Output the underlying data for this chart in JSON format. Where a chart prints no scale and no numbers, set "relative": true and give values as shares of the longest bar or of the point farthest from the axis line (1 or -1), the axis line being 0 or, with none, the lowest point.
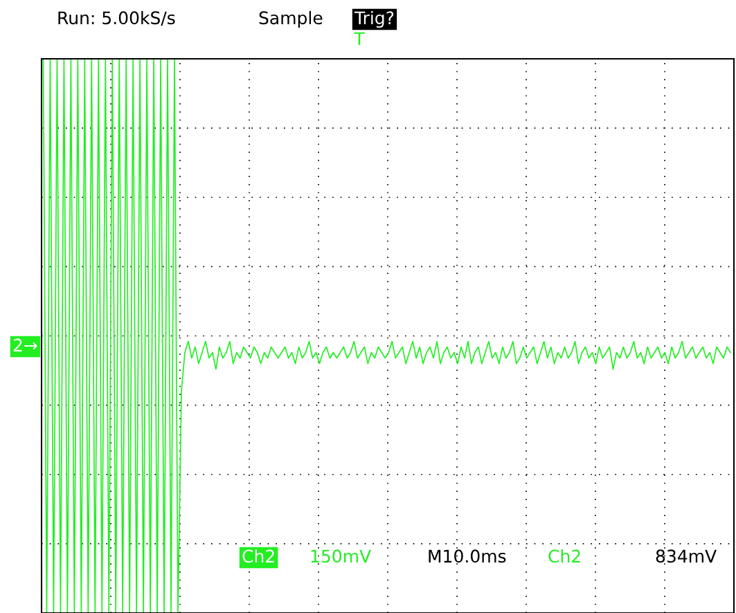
{
  "chart_data": {
    "type": "line",
    "relative": true,
    "grid": true,
    "tick_labels": false,
    "legend": false,
    "marker": "none",
    "line_style": "solid",
    "annotations": [
      "Run: 5.00kS/s",
      "Sample",
      "Trig?",
      "T",
      "2→",
      "Ch2",
      "150mV",
      "M10.0ms",
      "Ch2",
      "834mV"
    ],
    "categories": [
      null,
      null,
      null,
      null,
      null,
      null,
      null,
      null,
      null,
      null,
      null,
      null,
      null,
      null,
      null,
      null,
      null,
      null,
      null,
      null,
      null,
      null,
      null,
      null,
      null,
      null,
      null,
      null,
      null,
      null,
      null,
      null,
      null,
      null,
      null,
      null,
      null,
      null,
      null,
      null,
      null,
      null,
      null,
      null,
      null,
      null,
      null,
      null,
      null,
      null,
      null,
      null,
      null,
      null,
      null,
      null,
      null,
      null,
      null,
      null,
      null,
      null,
      null,
      null,
      null,
      null,
      null,
      null,
      null,
      null,
      null,
      null,
      null,
      null,
      null,
      null,
      null,
      null,
      null,
      null,
      null,
      null,
      null,
      null,
      null,
      null,
      null,
      null,
      null,
      null,
      null,
      null,
      null,
      null,
      null,
      null,
      null,
      null,
      null,
      null,
      null,
      null,
      null,
      null,
      null,
      null,
      null,
      null,
      null,
      null,
      null,
      null,
      null,
      null,
      null,
      null,
      null,
      null,
      null,
      null,
      null,
      null,
      null,
      null,
      null,
      null,
      null,
      null,
      null,
      null,
      null,
      null,
      null,
      null,
      null,
      null,
      null,
      null,
      null,
      null,
      null,
      null,
      null,
      null,
      null,
      null,
      null,
      null,
      null,
      null,
      null,
      null,
      null,
      null,
      null,
      null,
      null,
      null,
      null,
      null,
      null,
      null,
      null,
      null,
      null,
      null,
      null,
      null,
      null,
      null,
      null,
      null,
      null,
      null,
      null,
      null,
      null,
      null,
      null,
      null,
      null,
      null,
      null,
      null,
      null,
      null,
      null,
      null,
      null,
      null,
      null,
      null,
      null,
      null,
      null,
      null,
      null,
      null,
      null,
      null
    ],
    "series": [
      {
        "color": "#22ee22",
        "values": [
          1,
          0,
          1,
          0,
          1,
          0,
          1,
          0,
          1,
          0,
          1,
          0,
          1,
          0,
          1,
          0,
          1,
          0,
          1,
          0,
          1,
          0,
          1,
          0,
          1,
          0,
          1,
          0,
          1,
          0,
          1,
          0,
          1,
          0,
          1,
          0,
          1,
          0,
          1,
          0,
          0.4,
          0.47,
          0.49,
          0.46,
          0.48,
          0.45,
          0.47,
          0.49,
          0.46,
          0.47,
          0.44,
          0.48,
          0.46,
          0.47,
          0.49,
          0.45,
          0.47,
          0.46,
          0.48,
          0.47,
          0.46,
          0.48,
          0.47,
          0.45,
          0.47,
          0.46,
          0.48,
          0.47,
          0.46,
          0.47,
          0.48,
          0.46,
          0.47,
          0.45,
          0.48,
          0.46,
          0.47,
          0.49,
          0.46,
          0.47,
          0.45,
          0.47,
          0.48,
          0.46,
          0.47,
          0.46,
          0.47,
          0.48,
          0.46,
          0.47,
          0.49,
          0.46,
          0.47,
          0.48,
          0.45,
          0.47,
          0.46,
          0.48,
          0.47,
          0.46,
          0.47,
          0.49,
          0.46,
          0.47,
          0.48,
          0.45,
          0.47,
          0.49,
          0.46,
          0.48,
          0.45,
          0.47,
          0.48,
          0.46,
          0.49,
          0.45,
          0.47,
          0.48,
          0.46,
          0.47,
          0.45,
          0.48,
          0.46,
          0.49,
          0.45,
          0.47,
          0.48,
          0.45,
          0.47,
          0.49,
          0.46,
          0.47,
          0.45,
          0.48,
          0.46,
          0.47,
          0.49,
          0.45,
          0.46,
          0.48,
          0.46,
          0.47,
          0.48,
          0.45,
          0.47,
          0.49,
          0.46,
          0.48,
          0.45,
          0.47,
          0.46,
          0.48,
          0.46,
          0.47,
          0.49,
          0.45,
          0.47,
          0.48,
          0.46,
          0.47,
          0.45,
          0.48,
          0.46,
          0.47,
          0.48,
          0.44,
          0.47,
          0.46,
          0.48,
          0.46,
          0.47,
          0.49,
          0.46,
          0.47,
          0.45,
          0.48,
          0.46,
          0.47,
          0.48,
          0.46,
          0.47,
          0.45,
          0.48,
          0.46,
          0.47,
          0.49,
          0.46,
          0.47,
          0.48,
          0.46,
          0.47,
          0.48,
          0.46,
          0.47,
          0.45,
          0.48,
          0.47,
          0.46,
          0.48,
          0.47
        ]
      }
    ]
  }
}
